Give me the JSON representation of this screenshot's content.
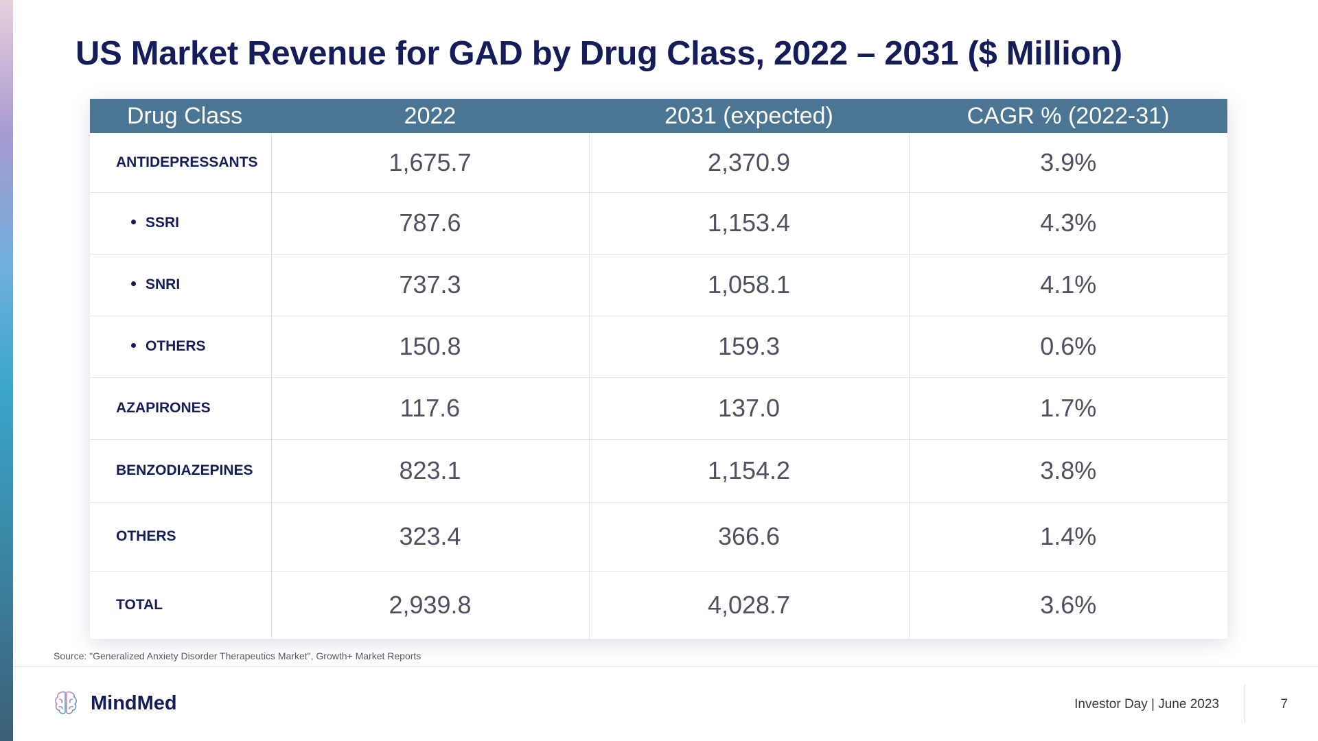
{
  "slide": {
    "title": "US Market Revenue for GAD by Drug Class, 2022 – 2031 ($ Million)"
  },
  "table": {
    "headers": [
      "Drug Class",
      "2022",
      "2031 (expected)",
      "CAGR % (2022-31)"
    ],
    "rows": [
      {
        "drug_class": "ANTIDEPRESSANTS",
        "y2022": "1,675.7",
        "y2031": "2,370.9",
        "cagr": "3.9%"
      },
      {
        "drug_class": "SSRI",
        "y2022": "787.6",
        "y2031": "1,153.4",
        "cagr": "4.3%"
      },
      {
        "drug_class": "SNRI",
        "y2022": "737.3",
        "y2031": "1,058.1",
        "cagr": "4.1%"
      },
      {
        "drug_class": "OTHERS",
        "y2022": "150.8",
        "y2031": "159.3",
        "cagr": "0.6%"
      },
      {
        "drug_class": "AZAPIRONES",
        "y2022": "117.6",
        "y2031": "137.0",
        "cagr": "1.7%"
      },
      {
        "drug_class": "BENZODIAZEPINES",
        "y2022": "823.1",
        "y2031": "1,154.2",
        "cagr": "3.8%"
      },
      {
        "drug_class": "OTHERS",
        "y2022": "323.4",
        "y2031": "366.6",
        "cagr": "1.4%"
      },
      {
        "drug_class": "TOTAL",
        "y2022": "2,939.8",
        "y2031": "4,028.7",
        "cagr": "3.6%"
      }
    ]
  },
  "source_note": "Source: \"Generalized Anxiety Disorder Therapeutics Market\", Growth+ Market Reports",
  "footer": {
    "company": "MindMed",
    "event": "Investor Day | June 2023",
    "page_number": "7"
  },
  "colors": {
    "title": "#141d5a",
    "header_bg": "#4a7694",
    "value_text": "#4d5160"
  }
}
